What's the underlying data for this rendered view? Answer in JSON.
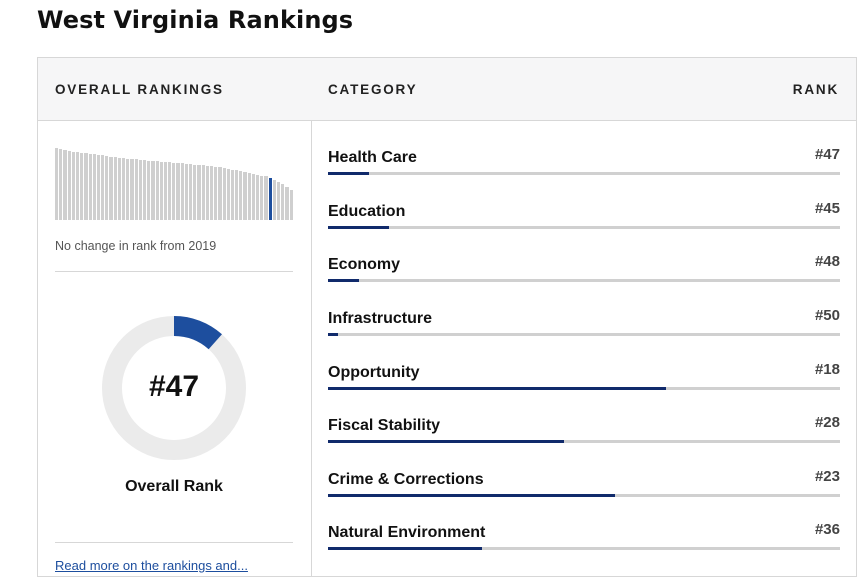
{
  "page": {
    "title": "West Virginia Rankings"
  },
  "overall": {
    "header": "OVERALL RANKINGS",
    "trend_bars": [
      73,
      72,
      71,
      70,
      69,
      69,
      68,
      68,
      67,
      67,
      66,
      66,
      65,
      64,
      64,
      63,
      63,
      62,
      62,
      62,
      61,
      61,
      60,
      60,
      60,
      59,
      59,
      59,
      58,
      58,
      58,
      57,
      57,
      56,
      56,
      56,
      55,
      55,
      54,
      54,
      53,
      52,
      51,
      51,
      50,
      49,
      48,
      47,
      46,
      45,
      45,
      43,
      41,
      39,
      36,
      33,
      30
    ],
    "highlight_index": 51,
    "change_text": "No change in rank from 2019",
    "rank_label": "#47",
    "rank_value": 47,
    "rank_label_caption": "Overall Rank",
    "link_text": "Read more on the rankings and..."
  },
  "categories": {
    "header_category": "CATEGORY",
    "header_rank": "RANK",
    "rows": [
      {
        "name": "Health Care",
        "rank": "#47",
        "fill": 0.08
      },
      {
        "name": "Education",
        "rank": "#45",
        "fill": 0.12
      },
      {
        "name": "Economy",
        "rank": "#48",
        "fill": 0.06
      },
      {
        "name": "Infrastructure",
        "rank": "#50",
        "fill": 0.02
      },
      {
        "name": "Opportunity",
        "rank": "#18",
        "fill": 0.66
      },
      {
        "name": "Fiscal Stability",
        "rank": "#28",
        "fill": 0.46
      },
      {
        "name": "Crime & Corrections",
        "rank": "#23",
        "fill": 0.56
      },
      {
        "name": "Natural Environment",
        "rank": "#36",
        "fill": 0.3
      }
    ]
  },
  "colors": {
    "accent": "#1d4e9e",
    "bar_fill": "#102a6b",
    "track": "#d0d0d0",
    "donut_track": "#ebebeb"
  }
}
